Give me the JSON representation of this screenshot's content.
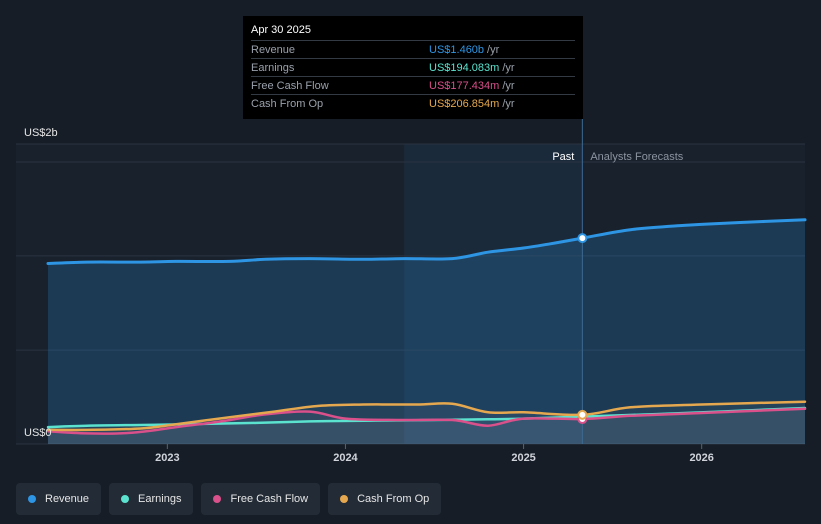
{
  "tooltip": {
    "date": "Apr 30 2025",
    "rows": [
      {
        "label": "Revenue",
        "value": "US$1.460b",
        "unit": "/yr"
      },
      {
        "label": "Earnings",
        "value": "US$194.083m",
        "unit": "/yr"
      },
      {
        "label": "Free Cash Flow",
        "value": "US$177.434m",
        "unit": "/yr"
      },
      {
        "label": "Cash From Op",
        "value": "US$206.854m",
        "unit": "/yr"
      }
    ]
  },
  "legend": [
    {
      "label": "Revenue"
    },
    {
      "label": "Earnings"
    },
    {
      "label": "Free Cash Flow"
    },
    {
      "label": "Cash From Op"
    }
  ],
  "colors": {
    "revenue": "#2d95e3",
    "earnings": "#5be3cf",
    "free_cash_flow": "#d9508a",
    "cash_from_op": "#e5a84f"
  },
  "chart_data": {
    "type": "line",
    "y_top_label": "US$2b",
    "y_bottom_label": "US$0",
    "ylim": [
      0,
      2.0
    ],
    "y_unit": "US$ billions",
    "x_ticks": [
      "2023",
      "2024",
      "2025",
      "2026"
    ],
    "xlim": [
      2022.33,
      2026.58
    ],
    "past_label": "Past",
    "forecast_label": "Analysts Forecasts",
    "past_end": 2025.33,
    "highlight_start": 2024.33,
    "series": [
      {
        "name": "Revenue",
        "points": [
          [
            2022.33,
            1.28
          ],
          [
            2022.55,
            1.29
          ],
          [
            2022.85,
            1.29
          ],
          [
            2023.05,
            1.295
          ],
          [
            2023.35,
            1.295
          ],
          [
            2023.55,
            1.31
          ],
          [
            2023.8,
            1.315
          ],
          [
            2024.1,
            1.31
          ],
          [
            2024.33,
            1.315
          ],
          [
            2024.6,
            1.315
          ],
          [
            2024.8,
            1.36
          ],
          [
            2025.0,
            1.39
          ],
          [
            2025.15,
            1.42
          ],
          [
            2025.33,
            1.46
          ],
          [
            2025.6,
            1.52
          ],
          [
            2025.9,
            1.55
          ],
          [
            2026.2,
            1.57
          ],
          [
            2026.58,
            1.59
          ]
        ]
      },
      {
        "name": "Earnings",
        "points": [
          [
            2022.33,
            0.12
          ],
          [
            2022.55,
            0.13
          ],
          [
            2022.85,
            0.135
          ],
          [
            2023.1,
            0.14
          ],
          [
            2023.5,
            0.15
          ],
          [
            2023.8,
            0.16
          ],
          [
            2024.1,
            0.165
          ],
          [
            2024.5,
            0.17
          ],
          [
            2024.8,
            0.175
          ],
          [
            2025.0,
            0.18
          ],
          [
            2025.33,
            0.194
          ],
          [
            2025.7,
            0.21
          ],
          [
            2026.1,
            0.23
          ],
          [
            2026.58,
            0.255
          ]
        ]
      },
      {
        "name": "Free Cash Flow",
        "points": [
          [
            2022.33,
            0.09
          ],
          [
            2022.55,
            0.075
          ],
          [
            2022.8,
            0.08
          ],
          [
            2023.05,
            0.12
          ],
          [
            2023.3,
            0.16
          ],
          [
            2023.55,
            0.21
          ],
          [
            2023.8,
            0.23
          ],
          [
            2024.0,
            0.18
          ],
          [
            2024.3,
            0.17
          ],
          [
            2024.6,
            0.17
          ],
          [
            2024.8,
            0.13
          ],
          [
            2025.0,
            0.18
          ],
          [
            2025.33,
            0.177
          ],
          [
            2025.6,
            0.2
          ],
          [
            2026.0,
            0.22
          ],
          [
            2026.58,
            0.25
          ]
        ]
      },
      {
        "name": "Cash From Op",
        "points": [
          [
            2022.33,
            0.1
          ],
          [
            2022.55,
            0.1
          ],
          [
            2022.85,
            0.11
          ],
          [
            2023.05,
            0.14
          ],
          [
            2023.35,
            0.19
          ],
          [
            2023.6,
            0.23
          ],
          [
            2023.85,
            0.27
          ],
          [
            2024.1,
            0.28
          ],
          [
            2024.4,
            0.28
          ],
          [
            2024.6,
            0.285
          ],
          [
            2024.8,
            0.225
          ],
          [
            2025.0,
            0.225
          ],
          [
            2025.33,
            0.207
          ],
          [
            2025.6,
            0.26
          ],
          [
            2026.0,
            0.28
          ],
          [
            2026.58,
            0.3
          ]
        ]
      }
    ]
  }
}
